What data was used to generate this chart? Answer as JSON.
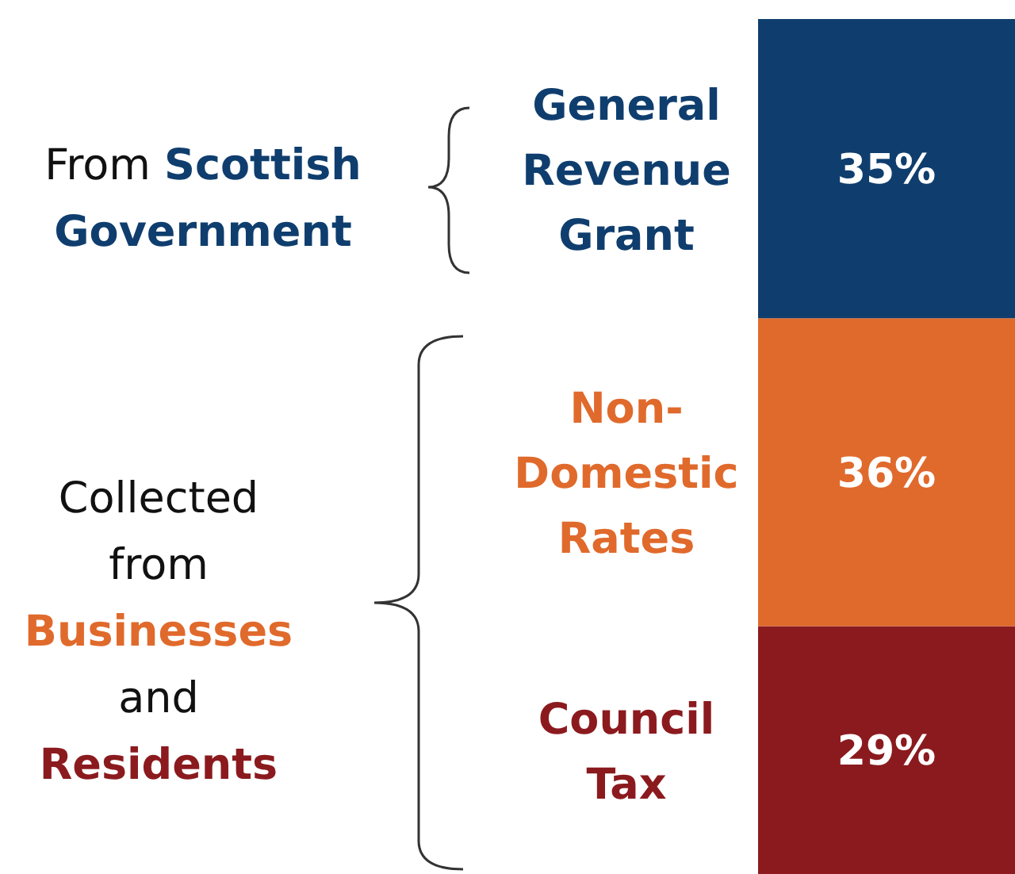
{
  "chart_data": {
    "type": "bar",
    "stacked": true,
    "categories": [
      null
    ],
    "series": [
      {
        "name": "Council Tax",
        "color": "#8b1a1e",
        "values": [
          29
        ],
        "value_labels": [
          "29%"
        ]
      },
      {
        "name": "Non-Domestic Rates",
        "color": "#e06a2c",
        "values": [
          36
        ],
        "value_labels": [
          "36%"
        ]
      },
      {
        "name": "General Revenue Grant",
        "color": "#0f3e6e",
        "values": [
          35
        ],
        "value_labels": [
          "35%"
        ]
      }
    ],
    "annotations": [
      "From",
      "Scottish Government",
      "Collected from",
      "Businesses",
      "and",
      "Residents"
    ]
  }
}
